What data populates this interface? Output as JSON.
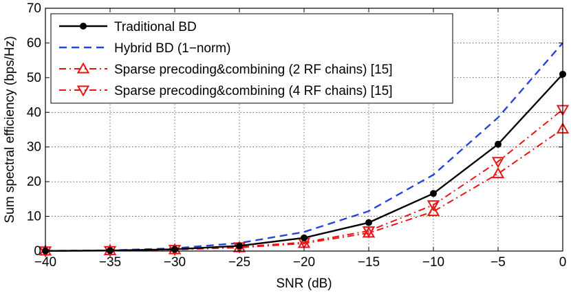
{
  "chart_data": {
    "type": "line",
    "title": "",
    "xlabel": "SNR (dB)",
    "ylabel": "Sum spectral efficiency (bps/Hz)",
    "xlim": [
      -40,
      0
    ],
    "ylim": [
      0,
      70
    ],
    "xticks": [
      -40,
      -35,
      -30,
      -25,
      -20,
      -15,
      -10,
      -5,
      0
    ],
    "yticks": [
      0,
      10,
      20,
      30,
      40,
      50,
      60,
      70
    ],
    "grid": true,
    "legend_position": "top-left",
    "x": [
      -40,
      -35,
      -30,
      -25,
      -20,
      -15,
      -10,
      -5,
      0
    ],
    "series": [
      {
        "name": "Traditional BD",
        "values": [
          0.04,
          0.15,
          0.5,
          1.5,
          3.8,
          8.2,
          16.6,
          30.8,
          51.0
        ],
        "color": "#000000",
        "line_style": "solid",
        "marker": "filled-circle"
      },
      {
        "name": "Hybrid BD (1−norm)",
        "values": [
          0.06,
          0.2,
          0.8,
          2.3,
          5.5,
          11.5,
          22.0,
          38.5,
          60.0
        ],
        "color": "#2244dd",
        "line_style": "dashed",
        "marker": "none"
      },
      {
        "name": "Sparse precoding&combining (2 RF chains) [15]",
        "values": [
          0.03,
          0.12,
          0.4,
          1.0,
          2.2,
          5.2,
          11.4,
          22.3,
          35.2
        ],
        "color": "#ee1111",
        "line_style": "dash-dot",
        "marker": "triangle-up"
      },
      {
        "name": "Sparse precoding&combining (4 RF chains) [15]",
        "values": [
          0.03,
          0.13,
          0.45,
          1.2,
          2.5,
          5.8,
          13.3,
          25.8,
          40.8
        ],
        "color": "#ee1111",
        "line_style": "dash-dot",
        "marker": "triangle-down"
      }
    ]
  }
}
